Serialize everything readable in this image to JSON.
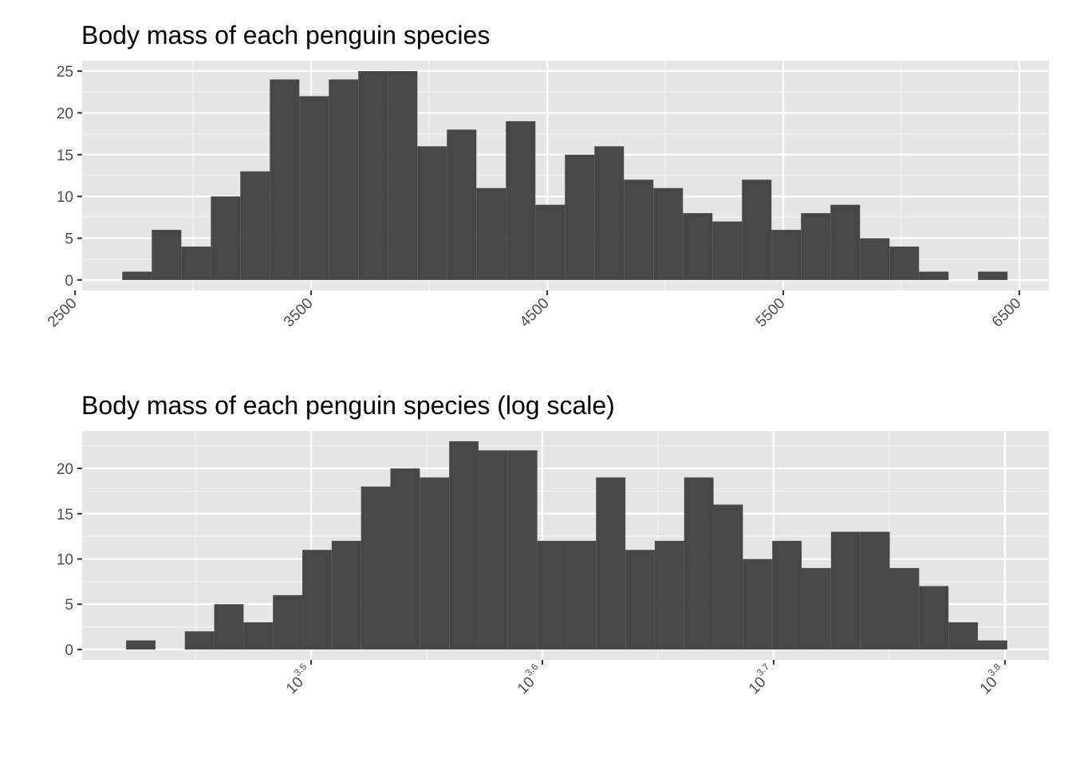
{
  "chart_data": [
    {
      "type": "bar",
      "title": "Body mass of each penguin species",
      "xlabel": "",
      "ylabel": "",
      "x_scale": "linear",
      "xlim": [
        2530,
        6625
      ],
      "ylim": [
        -1.25,
        26.25
      ],
      "x_ticks": [
        2500,
        3500,
        4500,
        5500,
        6500
      ],
      "x_tick_labels": [
        "2500",
        "3500",
        "4500",
        "5500",
        "6500"
      ],
      "y_ticks": [
        0,
        5,
        10,
        15,
        20,
        25
      ],
      "y_tick_labels": [
        "0",
        "5",
        "10",
        "15",
        "20",
        "25"
      ],
      "grid": true,
      "bar_color": "#474747",
      "panel_background": "#e5e5e5",
      "bins": [
        {
          "x0": 2700,
          "x1": 2825,
          "count": 1
        },
        {
          "x0": 2825,
          "x1": 2950,
          "count": 6
        },
        {
          "x0": 2950,
          "x1": 3075,
          "count": 4
        },
        {
          "x0": 3075,
          "x1": 3200,
          "count": 10
        },
        {
          "x0": 3200,
          "x1": 3325,
          "count": 13
        },
        {
          "x0": 3325,
          "x1": 3450,
          "count": 24
        },
        {
          "x0": 3450,
          "x1": 3575,
          "count": 22
        },
        {
          "x0": 3575,
          "x1": 3700,
          "count": 24
        },
        {
          "x0": 3700,
          "x1": 3825,
          "count": 25
        },
        {
          "x0": 3825,
          "x1": 3950,
          "count": 25
        },
        {
          "x0": 3950,
          "x1": 4075,
          "count": 16
        },
        {
          "x0": 4075,
          "x1": 4200,
          "count": 18
        },
        {
          "x0": 4200,
          "x1": 4325,
          "count": 11
        },
        {
          "x0": 4325,
          "x1": 4450,
          "count": 19
        },
        {
          "x0": 4450,
          "x1": 4575,
          "count": 9
        },
        {
          "x0": 4575,
          "x1": 4700,
          "count": 15
        },
        {
          "x0": 4700,
          "x1": 4825,
          "count": 16
        },
        {
          "x0": 4825,
          "x1": 4950,
          "count": 12
        },
        {
          "x0": 4950,
          "x1": 5075,
          "count": 11
        },
        {
          "x0": 5075,
          "x1": 5200,
          "count": 8
        },
        {
          "x0": 5200,
          "x1": 5325,
          "count": 7
        },
        {
          "x0": 5325,
          "x1": 5450,
          "count": 12
        },
        {
          "x0": 5450,
          "x1": 5575,
          "count": 6
        },
        {
          "x0": 5575,
          "x1": 5700,
          "count": 8
        },
        {
          "x0": 5700,
          "x1": 5825,
          "count": 9
        },
        {
          "x0": 5825,
          "x1": 5950,
          "count": 5
        },
        {
          "x0": 5950,
          "x1": 6075,
          "count": 4
        },
        {
          "x0": 6075,
          "x1": 6200,
          "count": 1
        },
        {
          "x0": 6200,
          "x1": 6325,
          "count": 0
        },
        {
          "x0": 6325,
          "x1": 6450,
          "count": 1
        }
      ]
    },
    {
      "type": "bar",
      "title": "Body mass of each penguin species (log scale)",
      "xlabel": "",
      "ylabel": "",
      "x_scale": "log10",
      "xlim_log10": [
        3.401,
        3.819
      ],
      "ylim": [
        -1.15,
        24.15
      ],
      "x_ticks_log10": [
        3.5,
        3.6,
        3.7,
        3.8
      ],
      "x_tick_labels": [
        {
          "base": "10",
          "exponent": "3.5"
        },
        {
          "base": "10",
          "exponent": "3.6"
        },
        {
          "base": "10",
          "exponent": "3.7"
        },
        {
          "base": "10",
          "exponent": "3.8"
        }
      ],
      "y_ticks": [
        0,
        5,
        10,
        15,
        20
      ],
      "y_tick_labels": [
        "0",
        "5",
        "10",
        "15",
        "20"
      ],
      "grid": true,
      "bar_color": "#474747",
      "panel_background": "#e5e5e5",
      "bins": [
        {
          "x0": 3.42,
          "x1": 3.4327,
          "count": 1
        },
        {
          "x0": 3.4327,
          "x1": 3.4454,
          "count": 0
        },
        {
          "x0": 3.4454,
          "x1": 3.4581,
          "count": 2
        },
        {
          "x0": 3.4581,
          "x1": 3.4708,
          "count": 5
        },
        {
          "x0": 3.4708,
          "x1": 3.4835,
          "count": 3
        },
        {
          "x0": 3.4835,
          "x1": 3.4962,
          "count": 6
        },
        {
          "x0": 3.4962,
          "x1": 3.5089,
          "count": 11
        },
        {
          "x0": 3.5089,
          "x1": 3.5216,
          "count": 12
        },
        {
          "x0": 3.5216,
          "x1": 3.5343,
          "count": 18
        },
        {
          "x0": 3.5343,
          "x1": 3.547,
          "count": 20
        },
        {
          "x0": 3.547,
          "x1": 3.5597,
          "count": 19
        },
        {
          "x0": 3.5597,
          "x1": 3.5724,
          "count": 23
        },
        {
          "x0": 3.5724,
          "x1": 3.5851,
          "count": 22
        },
        {
          "x0": 3.5851,
          "x1": 3.5978,
          "count": 22
        },
        {
          "x0": 3.5978,
          "x1": 3.6105,
          "count": 12
        },
        {
          "x0": 3.6105,
          "x1": 3.6232,
          "count": 12
        },
        {
          "x0": 3.6232,
          "x1": 3.6359,
          "count": 19
        },
        {
          "x0": 3.6359,
          "x1": 3.6486,
          "count": 11
        },
        {
          "x0": 3.6486,
          "x1": 3.6613,
          "count": 12
        },
        {
          "x0": 3.6613,
          "x1": 3.674,
          "count": 19
        },
        {
          "x0": 3.674,
          "x1": 3.6867,
          "count": 16
        },
        {
          "x0": 3.6867,
          "x1": 3.6994,
          "count": 10
        },
        {
          "x0": 3.6994,
          "x1": 3.7121,
          "count": 12
        },
        {
          "x0": 3.7121,
          "x1": 3.7248,
          "count": 9
        },
        {
          "x0": 3.7248,
          "x1": 3.7375,
          "count": 13
        },
        {
          "x0": 3.7375,
          "x1": 3.7502,
          "count": 13
        },
        {
          "x0": 3.7502,
          "x1": 3.7629,
          "count": 9
        },
        {
          "x0": 3.7629,
          "x1": 3.7756,
          "count": 7
        },
        {
          "x0": 3.7756,
          "x1": 3.7883,
          "count": 3
        },
        {
          "x0": 3.7883,
          "x1": 3.801,
          "count": 1
        }
      ]
    }
  ]
}
